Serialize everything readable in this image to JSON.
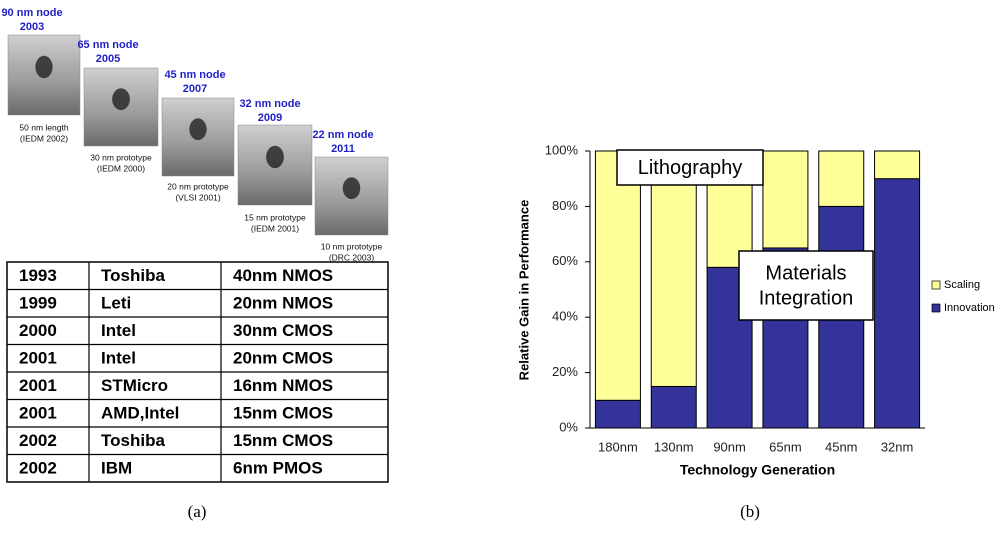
{
  "panel_a": {
    "nodes": [
      {
        "label": "90 nm node",
        "year": "2003",
        "caption": [
          "50 nm length",
          "(IEDM 2002)"
        ]
      },
      {
        "label": "65 nm node",
        "year": "2005",
        "caption": [
          "30 nm prototype",
          "(IEDM 2000)"
        ]
      },
      {
        "label": "45 nm node",
        "year": "2007",
        "caption": [
          "20 nm prototype",
          "(VLSI 2001)"
        ]
      },
      {
        "label": "32 nm node",
        "year": "2009",
        "caption": [
          "15 nm prototype",
          "(IEDM 2001)"
        ]
      },
      {
        "label": "22 nm node",
        "year": "2011",
        "caption": [
          "10 nm prototype",
          "(DRC 2003)"
        ]
      }
    ],
    "table": {
      "rows": [
        [
          "1993",
          "Toshiba",
          "40nm NMOS"
        ],
        [
          "1999",
          "Leti",
          "20nm NMOS"
        ],
        [
          "2000",
          "Intel",
          "30nm CMOS"
        ],
        [
          "2001",
          "Intel",
          "20nm CMOS"
        ],
        [
          "2001",
          "STMicro",
          "16nm NMOS"
        ],
        [
          "2001",
          "AMD,Intel",
          "15nm CMOS"
        ],
        [
          "2002",
          "Toshiba",
          "15nm CMOS"
        ],
        [
          "2002",
          "IBM",
          "6nm PMOS"
        ]
      ]
    },
    "caption": "(a)"
  },
  "panel_b": {
    "caption": "(b)"
  },
  "chart_data": {
    "type": "stacked_bar",
    "x_label": "Technology Generation",
    "y_label": "Relative Gain in Performance",
    "categories": [
      "180nm",
      "130nm",
      "90nm",
      "65nm",
      "45nm",
      "32nm"
    ],
    "series": [
      {
        "name": "Scaling",
        "color": "#ffff99",
        "values": [
          90,
          85,
          42,
          35,
          20,
          10
        ]
      },
      {
        "name": "Innovation",
        "color": "#333399",
        "values": [
          10,
          15,
          58,
          65,
          80,
          90
        ]
      }
    ],
    "ylim": [
      0,
      100
    ],
    "yticks": [
      {
        "value": 0,
        "label": "0%"
      },
      {
        "value": 20,
        "label": "20%"
      },
      {
        "value": 40,
        "label": "40%"
      },
      {
        "value": 60,
        "label": "60%"
      },
      {
        "value": 80,
        "label": "80%"
      },
      {
        "value": 100,
        "label": "100%"
      }
    ],
    "legend": "right",
    "annotations": [
      {
        "lines": [
          "Lithography"
        ]
      },
      {
        "lines": [
          "Materials",
          "Integration"
        ]
      }
    ]
  }
}
